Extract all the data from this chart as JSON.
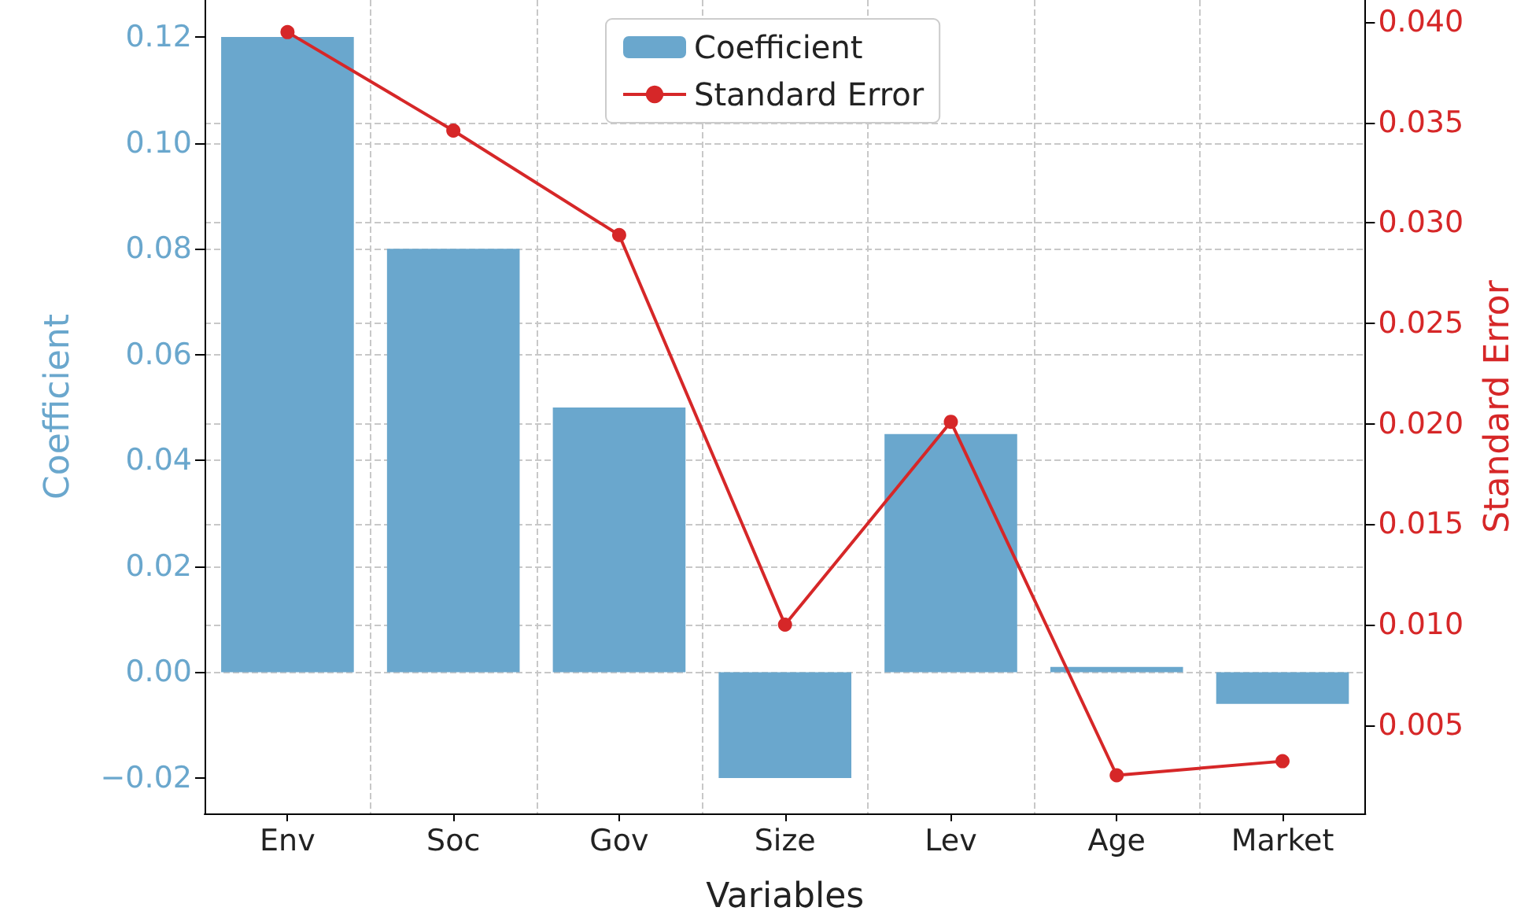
{
  "chart_data": {
    "type": "bar",
    "xlabel": "Variables",
    "ylabel": "Coefficient",
    "y2label": "Standard Error",
    "categories": [
      "Env",
      "Soc",
      "Gov",
      "Size",
      "Lev",
      "Age",
      "Market"
    ],
    "series": [
      {
        "name": "Coefficient",
        "color": "#6aa7cd",
        "values": [
          0.12,
          0.08,
          0.05,
          -0.02,
          0.045,
          0.001,
          -0.006
        ]
      },
      {
        "name": "Standard Error",
        "type": "line",
        "axis": "y2",
        "color": "#d62728",
        "values": [
          0.0395,
          0.0346,
          0.0294,
          0.01,
          0.0201,
          0.0025,
          0.0032
        ]
      }
    ],
    "ylim": [
      -0.0267,
      0.127
    ],
    "yticks": [
      {
        "value": -0.02,
        "label": "−0.02"
      },
      {
        "value": 0,
        "label": "0.00"
      },
      {
        "value": 0.02,
        "label": "0.02"
      },
      {
        "value": 0.04,
        "label": "0.04"
      },
      {
        "value": 0.06,
        "label": "0.06"
      },
      {
        "value": 0.08,
        "label": "0.08"
      },
      {
        "value": 0.1,
        "label": "0.10"
      },
      {
        "value": 0.12,
        "label": "0.12"
      }
    ],
    "y2lim": [
      0.0006,
      0.0411
    ],
    "y2ticks": [
      {
        "value": 0.005,
        "label": "0.005"
      },
      {
        "value": 0.01,
        "label": "0.010"
      },
      {
        "value": 0.015,
        "label": "0.015"
      },
      {
        "value": 0.02,
        "label": "0.020"
      },
      {
        "value": 0.025,
        "label": "0.025"
      },
      {
        "value": 0.03,
        "label": "0.030"
      },
      {
        "value": 0.035,
        "label": "0.035"
      },
      {
        "value": 0.04,
        "label": "0.040"
      }
    ],
    "grid": true,
    "legend": "top",
    "marker": "circle",
    "line_style": "solid"
  }
}
